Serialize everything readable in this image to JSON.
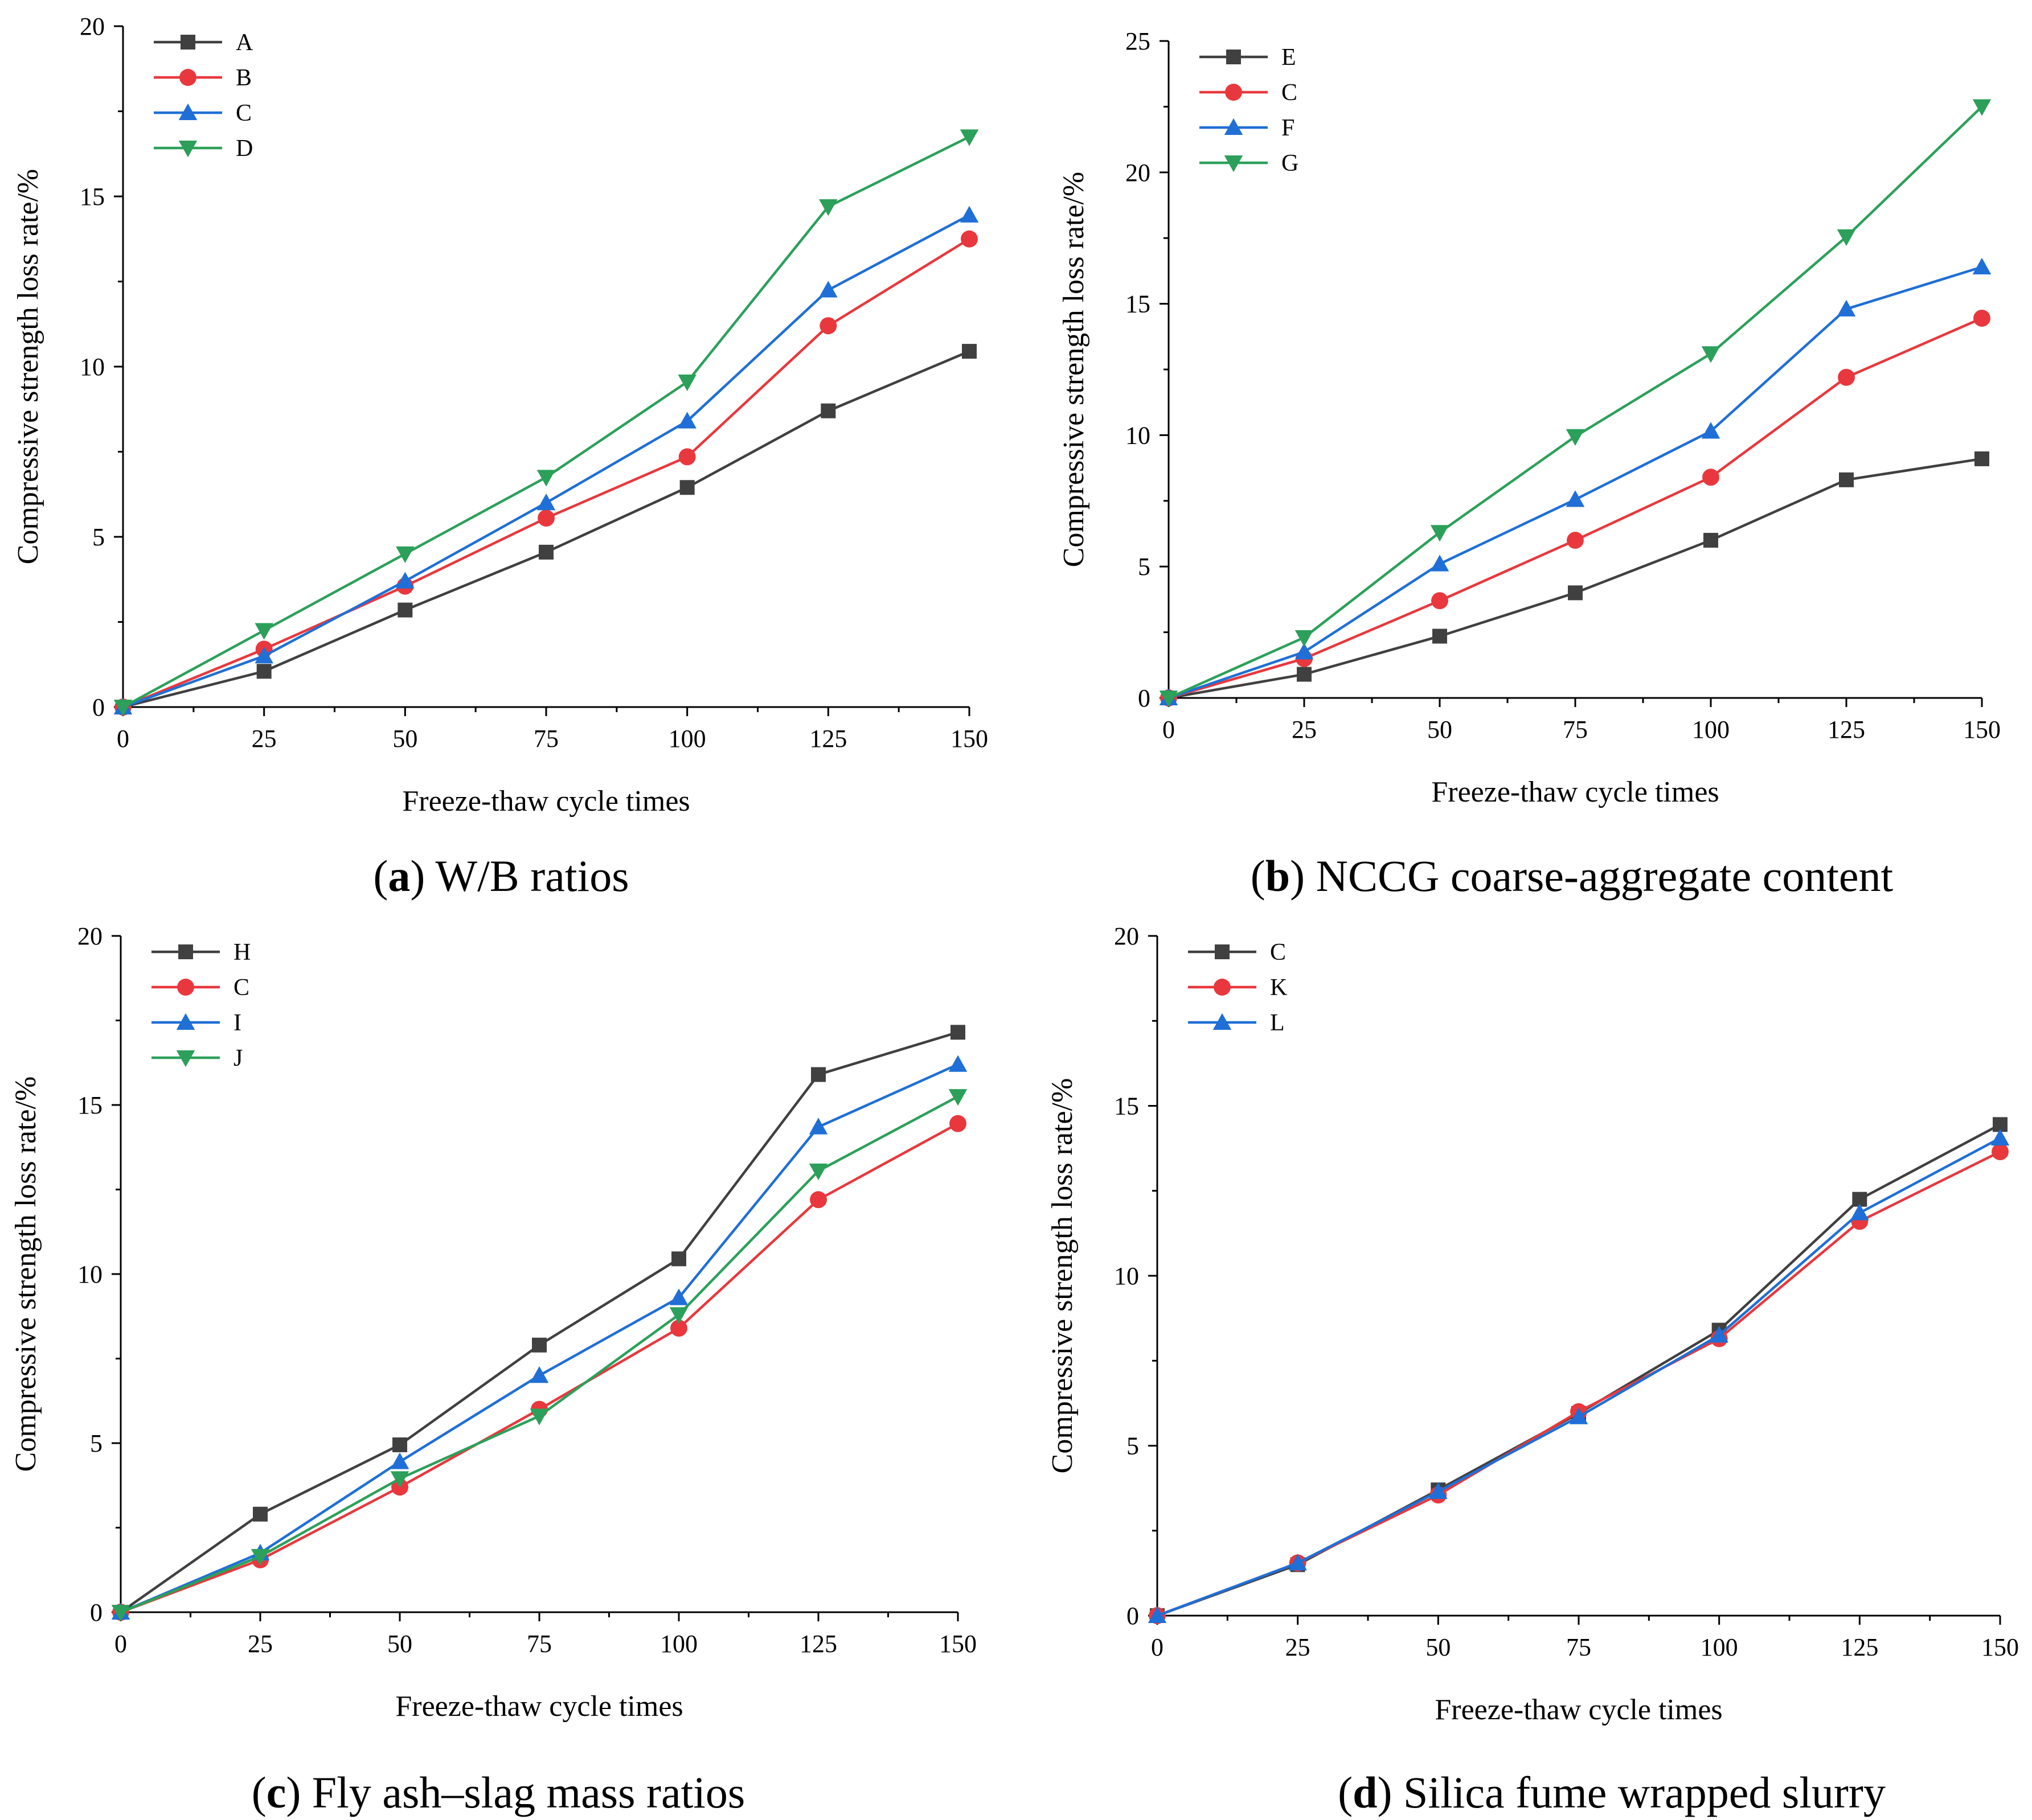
{
  "chart_data": [
    {
      "type": "line",
      "panel_letter": "a",
      "caption": "W/B ratios",
      "xlabel": "Freeze-thaw cycle times",
      "ylabel": "Compressive strength loss rate/%",
      "x": [
        0,
        25,
        50,
        75,
        100,
        125,
        150
      ],
      "xlim": [
        0,
        150
      ],
      "ylim": [
        0,
        20
      ],
      "xticks": [
        "0",
        "25",
        "50",
        "75",
        "100",
        "125",
        "150"
      ],
      "yticks": [
        "0",
        "5",
        "10",
        "15",
        "20"
      ],
      "legend_position": "top-left",
      "series": [
        {
          "name": "A",
          "color": "#404040",
          "marker": "square",
          "values": [
            0,
            1.05,
            2.85,
            4.55,
            6.45,
            8.7,
            10.45
          ]
        },
        {
          "name": "B",
          "color": "#e8383d",
          "marker": "circle",
          "values": [
            0,
            1.7,
            3.55,
            5.55,
            7.35,
            11.2,
            13.75
          ]
        },
        {
          "name": "C",
          "color": "#1f6fd6",
          "marker": "triangle-up",
          "values": [
            0,
            1.5,
            3.7,
            6.0,
            8.4,
            12.25,
            14.45
          ]
        },
        {
          "name": "D",
          "color": "#2ca05a",
          "marker": "triangle-down",
          "values": [
            0,
            2.25,
            4.5,
            6.75,
            9.55,
            14.7,
            16.75
          ]
        }
      ]
    },
    {
      "type": "line",
      "panel_letter": "b",
      "caption": "NCCG coarse-aggregate content",
      "xlabel": "Freeze-thaw cycle times",
      "ylabel": "Compressive strength loss rate/%",
      "x": [
        0,
        25,
        50,
        75,
        100,
        125,
        150
      ],
      "xlim": [
        0,
        150
      ],
      "ylim": [
        0,
        25
      ],
      "xticks": [
        "0",
        "25",
        "50",
        "75",
        "100",
        "125",
        "150"
      ],
      "yticks": [
        "0",
        "5",
        "10",
        "15",
        "20",
        "25"
      ],
      "legend_position": "top-left",
      "series": [
        {
          "name": "E",
          "color": "#404040",
          "marker": "square",
          "values": [
            0,
            0.9,
            2.35,
            4.0,
            6.0,
            8.3,
            9.1
          ]
        },
        {
          "name": "C",
          "color": "#e8383d",
          "marker": "circle",
          "values": [
            0,
            1.5,
            3.7,
            6.0,
            8.4,
            12.2,
            14.45
          ]
        },
        {
          "name": "F",
          "color": "#1f6fd6",
          "marker": "triangle-up",
          "values": [
            0,
            1.75,
            5.1,
            7.55,
            10.15,
            14.8,
            16.4
          ]
        },
        {
          "name": "G",
          "color": "#2ca05a",
          "marker": "triangle-down",
          "values": [
            0,
            2.3,
            6.3,
            9.95,
            13.1,
            17.55,
            22.5
          ]
        }
      ]
    },
    {
      "type": "line",
      "panel_letter": "c",
      "caption": "Fly ash–slag mass ratios",
      "xlabel": "Freeze-thaw cycle times",
      "ylabel": "Compressive strength loss rate/%",
      "x": [
        0,
        25,
        50,
        75,
        100,
        125,
        150
      ],
      "xlim": [
        0,
        150
      ],
      "ylim": [
        0,
        20
      ],
      "xticks": [
        "0",
        "25",
        "50",
        "75",
        "100",
        "125",
        "150"
      ],
      "yticks": [
        "0",
        "5",
        "10",
        "15",
        "20"
      ],
      "legend_position": "top-left",
      "series": [
        {
          "name": "H",
          "color": "#404040",
          "marker": "square",
          "values": [
            0,
            2.9,
            4.95,
            7.9,
            10.45,
            15.9,
            17.15
          ]
        },
        {
          "name": "C",
          "color": "#e8383d",
          "marker": "circle",
          "values": [
            0,
            1.55,
            3.7,
            6.0,
            8.4,
            12.2,
            14.45
          ]
        },
        {
          "name": "I",
          "color": "#1f6fd6",
          "marker": "triangle-up",
          "values": [
            0,
            1.75,
            4.45,
            7.0,
            9.3,
            14.35,
            16.2
          ]
        },
        {
          "name": "J",
          "color": "#2ca05a",
          "marker": "triangle-down",
          "values": [
            0,
            1.65,
            3.95,
            5.8,
            8.8,
            13.05,
            15.25
          ]
        }
      ]
    },
    {
      "type": "line",
      "panel_letter": "d",
      "caption": "Silica fume wrapped slurry",
      "xlabel": "Freeze-thaw cycle times",
      "ylabel": "Compressive strength loss rate/%",
      "x": [
        0,
        25,
        50,
        75,
        100,
        125,
        150
      ],
      "xlim": [
        0,
        150
      ],
      "ylim": [
        0,
        20
      ],
      "xticks": [
        "0",
        "25",
        "50",
        "75",
        "100",
        "125",
        "150"
      ],
      "yticks": [
        "0",
        "5",
        "10",
        "15",
        "20"
      ],
      "legend_position": "top-left",
      "series": [
        {
          "name": "C",
          "color": "#404040",
          "marker": "square",
          "values": [
            0,
            1.5,
            3.7,
            5.95,
            8.4,
            12.25,
            14.45
          ]
        },
        {
          "name": "K",
          "color": "#e8383d",
          "marker": "circle",
          "values": [
            0,
            1.55,
            3.55,
            6.0,
            8.15,
            11.6,
            13.65
          ]
        },
        {
          "name": "L",
          "color": "#1f6fd6",
          "marker": "triangle-up",
          "values": [
            0,
            1.55,
            3.65,
            5.85,
            8.25,
            11.85,
            14.05
          ]
        }
      ]
    }
  ]
}
